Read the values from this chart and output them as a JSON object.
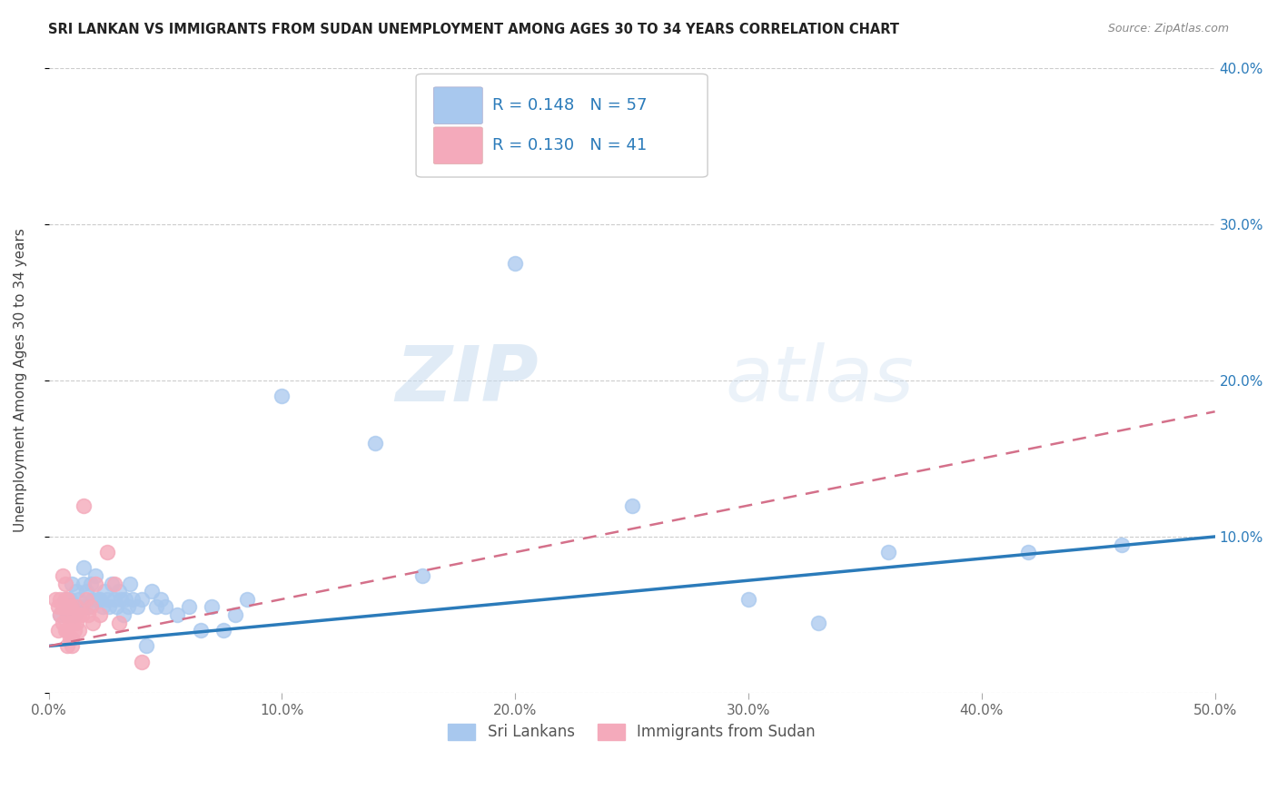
{
  "title": "SRI LANKAN VS IMMIGRANTS FROM SUDAN UNEMPLOYMENT AMONG AGES 30 TO 34 YEARS CORRELATION CHART",
  "source": "Source: ZipAtlas.com",
  "ylabel": "Unemployment Among Ages 30 to 34 years",
  "xlim": [
    0,
    0.5
  ],
  "ylim": [
    0,
    0.4
  ],
  "xticks": [
    0.0,
    0.1,
    0.2,
    0.3,
    0.4,
    0.5
  ],
  "xticklabels": [
    "0.0%",
    "10.0%",
    "20.0%",
    "30.0%",
    "40.0%",
    "50.0%"
  ],
  "yticks": [
    0.0,
    0.1,
    0.2,
    0.3,
    0.4
  ],
  "yticklabels_right": [
    "",
    "10.0%",
    "20.0%",
    "30.0%",
    "40.0%"
  ],
  "blue_color": "#A8C8EE",
  "pink_color": "#F4AABB",
  "trend_blue": "#2B7BBA",
  "trend_pink": "#D4708A",
  "axis_label_color": "#2B7BBA",
  "r_blue": 0.148,
  "n_blue": 57,
  "r_pink": 0.13,
  "n_pink": 41,
  "watermark_zip": "ZIP",
  "watermark_atlas": "atlas",
  "blue_scatter_x": [
    0.005,
    0.007,
    0.008,
    0.009,
    0.01,
    0.01,
    0.011,
    0.012,
    0.013,
    0.014,
    0.015,
    0.015,
    0.016,
    0.017,
    0.018,
    0.019,
    0.02,
    0.021,
    0.022,
    0.023,
    0.024,
    0.025,
    0.026,
    0.027,
    0.028,
    0.029,
    0.03,
    0.031,
    0.032,
    0.033,
    0.034,
    0.035,
    0.036,
    0.038,
    0.04,
    0.042,
    0.044,
    0.046,
    0.048,
    0.05,
    0.055,
    0.06,
    0.065,
    0.07,
    0.075,
    0.08,
    0.085,
    0.1,
    0.14,
    0.16,
    0.2,
    0.25,
    0.3,
    0.33,
    0.36,
    0.42,
    0.46
  ],
  "blue_scatter_y": [
    0.05,
    0.06,
    0.05,
    0.06,
    0.055,
    0.07,
    0.05,
    0.065,
    0.06,
    0.055,
    0.07,
    0.08,
    0.065,
    0.055,
    0.07,
    0.06,
    0.075,
    0.06,
    0.06,
    0.055,
    0.065,
    0.06,
    0.055,
    0.07,
    0.06,
    0.055,
    0.065,
    0.06,
    0.05,
    0.06,
    0.055,
    0.07,
    0.06,
    0.055,
    0.06,
    0.03,
    0.065,
    0.055,
    0.06,
    0.055,
    0.05,
    0.055,
    0.04,
    0.055,
    0.04,
    0.05,
    0.06,
    0.19,
    0.16,
    0.075,
    0.275,
    0.12,
    0.06,
    0.045,
    0.09,
    0.09,
    0.095
  ],
  "pink_scatter_x": [
    0.003,
    0.004,
    0.004,
    0.005,
    0.005,
    0.006,
    0.006,
    0.006,
    0.007,
    0.007,
    0.007,
    0.007,
    0.008,
    0.008,
    0.008,
    0.008,
    0.009,
    0.009,
    0.009,
    0.01,
    0.01,
    0.01,
    0.01,
    0.011,
    0.011,
    0.012,
    0.012,
    0.013,
    0.013,
    0.014,
    0.015,
    0.016,
    0.017,
    0.018,
    0.019,
    0.02,
    0.022,
    0.025,
    0.028,
    0.03,
    0.04
  ],
  "pink_scatter_y": [
    0.06,
    0.055,
    0.04,
    0.06,
    0.05,
    0.075,
    0.055,
    0.045,
    0.06,
    0.07,
    0.055,
    0.04,
    0.06,
    0.05,
    0.04,
    0.03,
    0.055,
    0.045,
    0.035,
    0.055,
    0.045,
    0.035,
    0.03,
    0.05,
    0.04,
    0.055,
    0.045,
    0.05,
    0.04,
    0.05,
    0.12,
    0.06,
    0.05,
    0.055,
    0.045,
    0.07,
    0.05,
    0.09,
    0.07,
    0.045,
    0.02
  ],
  "blue_trend_x0": 0.0,
  "blue_trend_y0": 0.03,
  "blue_trend_x1": 0.5,
  "blue_trend_y1": 0.1,
  "pink_trend_x0": 0.0,
  "pink_trend_y0": 0.03,
  "pink_trend_x1": 0.5,
  "pink_trend_y1": 0.18
}
